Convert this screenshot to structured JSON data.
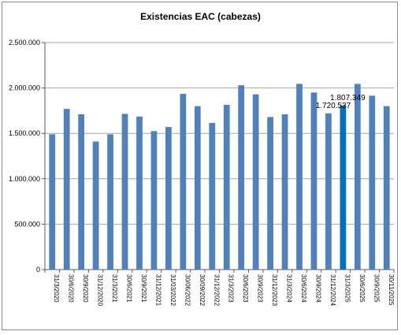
{
  "chart_data": {
    "type": "bar",
    "title": "Existencias EAC (cabezas)",
    "xlabel": "",
    "ylabel": "",
    "ylim": [
      0,
      2500000
    ],
    "yticks": [
      0,
      500000,
      1000000,
      1500000,
      2000000,
      2500000
    ],
    "ytick_labels": [
      "0",
      "500.000",
      "1.000.000",
      "1.500.000",
      "2.000.000",
      "2.500.000"
    ],
    "grid": true,
    "legend": "none",
    "categories": [
      "31/3/2020",
      "30/6/2020",
      "30/9/2020",
      "31/12/2020",
      "31/3/2021",
      "30/6/2021",
      "30/9/2021",
      "31/12/2021",
      "31/03/2022",
      "30/06/2022",
      "30/09/2022",
      "31/12/2022",
      "31/3/2023",
      "30/6/2023",
      "30/9/2023",
      "31/12/2023",
      "31/3/2024",
      "30/6/2024",
      "30/9/2024",
      "31/12/2024",
      "31/3/2025",
      "30/6/2025",
      "30/9/2025",
      "30/11/2025"
    ],
    "values": [
      1490000,
      1770000,
      1710000,
      1410000,
      1490000,
      1715000,
      1685000,
      1525000,
      1570000,
      1935000,
      1800000,
      1615000,
      1815000,
      2030000,
      1930000,
      1680000,
      1710000,
      2045000,
      1950000,
      1720537,
      1807349,
      2045000,
      1915000,
      1800000
    ],
    "data_labels": [
      {
        "category": "31/12/2024",
        "text": "1.720.537"
      },
      {
        "category": "31/3/2025",
        "text": "1.807.349"
      }
    ],
    "colors": {
      "bar": "#4f81bd",
      "highlight": "#0070c0",
      "grid": "#a6a6a6",
      "axis": "#595959"
    },
    "highlight_category": "31/3/2025"
  }
}
